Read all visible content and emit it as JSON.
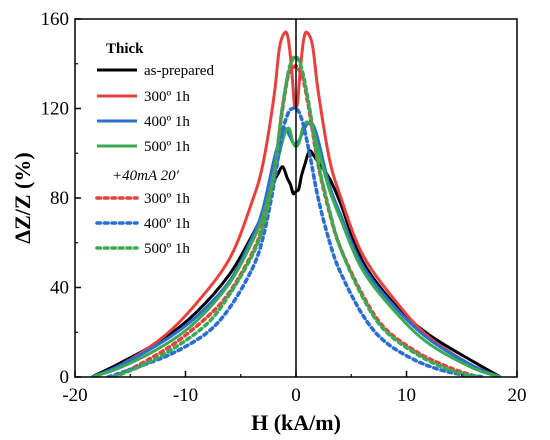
{
  "chart_data": {
    "type": "line",
    "xlabel": "H (kA/m)",
    "ylabel": "ΔZ/Z (%)",
    "xlim": [
      -20,
      20
    ],
    "ylim": [
      0,
      160
    ],
    "xticks": [
      -20,
      -10,
      0,
      10,
      20
    ],
    "yticks": [
      0,
      40,
      80,
      120,
      160
    ],
    "grid": false,
    "legend_placement": "top-left",
    "legend_title": "Thick",
    "legend_subtitle": "+40mA 20′",
    "series": [
      {
        "name": "as-prepared",
        "color": "#000000",
        "style": "solid",
        "x": [
          -18.5,
          -16,
          -12,
          -9,
          -6,
          -4,
          -3,
          -2,
          -1.6,
          -1.2,
          -0.8,
          -0.5,
          -0.25,
          0,
          0.25,
          0.5,
          0.8,
          1.2,
          1.6,
          2,
          3,
          4,
          6,
          9,
          12,
          16,
          18.5
        ],
        "y": [
          0,
          6,
          17,
          29,
          46,
          63,
          73,
          87,
          91,
          94,
          89,
          86,
          82,
          83,
          84,
          90,
          95,
          101,
          99,
          96,
          89,
          78,
          52,
          32,
          19,
          7,
          0
        ]
      },
      {
        "name": "300º 1h",
        "color": "#e8403d",
        "style": "solid",
        "x": [
          -18.5,
          -16,
          -12,
          -9,
          -6,
          -4,
          -3,
          -2,
          -1.5,
          -1,
          -0.7,
          -0.4,
          -0.15,
          0,
          0.15,
          0.4,
          0.7,
          1,
          1.5,
          2,
          3,
          4,
          6,
          9,
          12,
          16,
          18.5
        ],
        "y": [
          0,
          5,
          18,
          33,
          53,
          78,
          95,
          125,
          147,
          154,
          151,
          138,
          122,
          121,
          123,
          138,
          151,
          154,
          148,
          128,
          98,
          81,
          55,
          34,
          18,
          5,
          0
        ]
      },
      {
        "name": "400º 1h",
        "color": "#2a6fd0",
        "style": "solid",
        "x": [
          -18.5,
          -16,
          -12,
          -9,
          -6,
          -4,
          -3,
          -2,
          -1.5,
          -1,
          -0.6,
          -0.3,
          0,
          0.3,
          0.6,
          1,
          1.5,
          2,
          3,
          4,
          6,
          9,
          12,
          16,
          18.5
        ],
        "y": [
          0,
          5,
          16,
          27,
          43,
          62,
          75,
          97,
          106,
          111,
          108,
          105,
          104,
          106,
          109,
          113,
          113,
          106,
          86,
          73,
          50,
          31,
          17,
          5,
          0
        ]
      },
      {
        "name": "500º 1h",
        "color": "#3aaa55",
        "style": "solid",
        "x": [
          -18.5,
          -16,
          -12,
          -9,
          -6,
          -4,
          -3,
          -2,
          -1.5,
          -1,
          -0.6,
          -0.3,
          0,
          0.3,
          0.6,
          1,
          1.5,
          2,
          3,
          4,
          6,
          9,
          12,
          16,
          18.5
        ],
        "y": [
          0,
          4,
          14,
          25,
          42,
          60,
          72,
          90,
          100,
          109,
          111,
          105,
          103,
          105,
          111,
          114,
          111,
          102,
          84,
          71,
          48,
          29,
          15,
          4,
          0
        ]
      },
      {
        "name": "300º 1h",
        "color": "#e8403d",
        "style": "dotted",
        "x": [
          -16.5,
          -14,
          -11,
          -8,
          -6,
          -4,
          -3,
          -2,
          -1.3,
          -0.7,
          -0.3,
          0,
          0.3,
          0.7,
          1.3,
          2,
          3,
          4,
          6,
          8,
          11,
          14,
          16.5
        ],
        "y": [
          0,
          6,
          15,
          27,
          38,
          55,
          68,
          90,
          117,
          135,
          138,
          139,
          137,
          132,
          116,
          95,
          74,
          58,
          37,
          22,
          11,
          4,
          0
        ]
      },
      {
        "name": "400º 1h",
        "color": "#2a6fd0",
        "style": "dotted",
        "x": [
          -17,
          -14,
          -11,
          -8,
          -6,
          -4,
          -3,
          -2,
          -1.3,
          -0.7,
          -0.3,
          0,
          0.3,
          0.7,
          1.3,
          2,
          3,
          4,
          6,
          8,
          11,
          14,
          17
        ],
        "y": [
          0,
          5,
          11,
          20,
          31,
          48,
          62,
          86,
          108,
          118,
          120,
          120,
          118,
          112,
          98,
          80,
          61,
          47,
          28,
          16,
          7,
          2,
          0
        ]
      },
      {
        "name": "500º 1h",
        "color": "#3aaa55",
        "style": "dotted",
        "x": [
          -16.5,
          -14,
          -11,
          -8,
          -6,
          -4,
          -3,
          -2,
          -1.3,
          -0.7,
          -0.3,
          0,
          0.3,
          0.7,
          1.3,
          2,
          3,
          4,
          6,
          8,
          11,
          14,
          16.5
        ],
        "y": [
          0,
          5,
          13,
          24,
          37,
          54,
          67,
          90,
          118,
          136,
          142,
          143,
          141,
          134,
          118,
          96,
          75,
          58,
          36,
          21,
          10,
          3,
          0
        ]
      }
    ]
  }
}
